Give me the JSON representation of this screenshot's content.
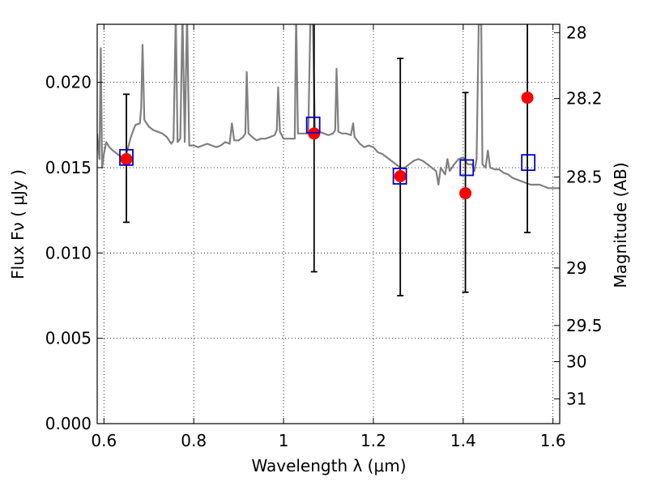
{
  "chart_data": {
    "type": "scatter",
    "xlabel": "Wavelength  λ (μm)",
    "ylabel_left": "Flux  Fν  ( μJy )",
    "ylabel_right": "Magnitude (AB)",
    "xlim": [
      0.585,
      1.615
    ],
    "ylim": [
      0.0,
      0.0234
    ],
    "x_ticks": [
      0.6,
      0.8,
      1.0,
      1.2,
      1.4,
      1.6
    ],
    "x_tick_labels": [
      "0.6",
      "0.8",
      "1",
      "1.2",
      "1.4",
      "1.6"
    ],
    "y_ticks": [
      0.0,
      0.005,
      0.01,
      0.015,
      0.02
    ],
    "y_tick_labels": [
      "0.000",
      "0.005",
      "0.010",
      "0.015",
      "0.020"
    ],
    "right_ticks": [
      {
        "label": "28",
        "flux": 0.02291
      },
      {
        "label": "28.2",
        "flux": 0.01905
      },
      {
        "label": "28.5",
        "flux": 0.01445
      },
      {
        "label": "29",
        "flux": 0.00912
      },
      {
        "label": "29.5",
        "flux": 0.00575
      },
      {
        "label": "30",
        "flux": 0.00363
      },
      {
        "label": "31",
        "flux": 0.00145
      }
    ],
    "grid": true,
    "grid_style": "dotted",
    "colors": {
      "spectrum": "#808080",
      "observed": "#ff0000",
      "model": "#0000cc",
      "errorbar": "#000000"
    },
    "series": [
      {
        "kind": "line",
        "points": [
          [
            0.585,
            0.017
          ],
          [
            0.59,
            0.0155
          ],
          [
            0.593,
            0.022
          ],
          [
            0.596,
            0.015
          ],
          [
            0.6,
            0.0158
          ],
          [
            0.605,
            0.0165
          ],
          [
            0.612,
            0.0162
          ],
          [
            0.62,
            0.016
          ],
          [
            0.63,
            0.0158
          ],
          [
            0.64,
            0.0156
          ],
          [
            0.65,
            0.0158
          ],
          [
            0.66,
            0.0168
          ],
          [
            0.67,
            0.0175
          ],
          [
            0.68,
            0.0176
          ],
          [
            0.683,
            0.0185
          ],
          [
            0.686,
            0.0222
          ],
          [
            0.69,
            0.0178
          ],
          [
            0.7,
            0.0174
          ],
          [
            0.71,
            0.0172
          ],
          [
            0.72,
            0.0171
          ],
          [
            0.73,
            0.017
          ],
          [
            0.74,
            0.0168
          ],
          [
            0.75,
            0.0164
          ],
          [
            0.755,
            0.0166
          ],
          [
            0.76,
            0.024
          ],
          [
            0.764,
            0.0165
          ],
          [
            0.77,
            0.0167
          ],
          [
            0.775,
            0.024
          ],
          [
            0.78,
            0.0165
          ],
          [
            0.785,
            0.024
          ],
          [
            0.79,
            0.0163
          ],
          [
            0.8,
            0.0163
          ],
          [
            0.81,
            0.0162
          ],
          [
            0.82,
            0.0163
          ],
          [
            0.83,
            0.0164
          ],
          [
            0.84,
            0.0163
          ],
          [
            0.85,
            0.0162
          ],
          [
            0.86,
            0.0163
          ],
          [
            0.87,
            0.0165
          ],
          [
            0.88,
            0.0164
          ],
          [
            0.885,
            0.0176
          ],
          [
            0.89,
            0.0166
          ],
          [
            0.9,
            0.0166
          ],
          [
            0.91,
            0.0168
          ],
          [
            0.915,
            0.017
          ],
          [
            0.918,
            0.0206
          ],
          [
            0.922,
            0.017
          ],
          [
            0.93,
            0.0168
          ],
          [
            0.94,
            0.0166
          ],
          [
            0.95,
            0.0167
          ],
          [
            0.96,
            0.0167
          ],
          [
            0.97,
            0.0168
          ],
          [
            0.98,
            0.0169
          ],
          [
            0.985,
            0.0172
          ],
          [
            0.988,
            0.0197
          ],
          [
            0.992,
            0.0171
          ],
          [
            1.0,
            0.0167
          ],
          [
            1.01,
            0.0167
          ],
          [
            1.02,
            0.0167
          ],
          [
            1.025,
            0.0167
          ],
          [
            1.028,
            0.024
          ],
          [
            1.032,
            0.017
          ],
          [
            1.04,
            0.017
          ],
          [
            1.05,
            0.017
          ],
          [
            1.055,
            0.017
          ],
          [
            1.06,
            0.024
          ],
          [
            1.065,
            0.024
          ],
          [
            1.07,
            0.0168
          ],
          [
            1.08,
            0.0171
          ],
          [
            1.09,
            0.017
          ],
          [
            1.1,
            0.0169
          ],
          [
            1.11,
            0.017
          ],
          [
            1.115,
            0.0172
          ],
          [
            1.118,
            0.0208
          ],
          [
            1.122,
            0.0171
          ],
          [
            1.13,
            0.017
          ],
          [
            1.14,
            0.017
          ],
          [
            1.15,
            0.0169
          ],
          [
            1.155,
            0.0176
          ],
          [
            1.158,
            0.0168
          ],
          [
            1.17,
            0.0164
          ],
          [
            1.18,
            0.0162
          ],
          [
            1.19,
            0.0163
          ],
          [
            1.2,
            0.0162
          ],
          [
            1.21,
            0.0159
          ],
          [
            1.22,
            0.0158
          ],
          [
            1.23,
            0.0156
          ],
          [
            1.24,
            0.0154
          ],
          [
            1.25,
            0.0152
          ],
          [
            1.26,
            0.015
          ],
          [
            1.27,
            0.015
          ],
          [
            1.28,
            0.0152
          ],
          [
            1.29,
            0.0154
          ],
          [
            1.3,
            0.0155
          ],
          [
            1.31,
            0.0154
          ],
          [
            1.32,
            0.0152
          ],
          [
            1.33,
            0.015
          ],
          [
            1.34,
            0.0148
          ],
          [
            1.345,
            0.014
          ],
          [
            1.35,
            0.015
          ],
          [
            1.36,
            0.0146
          ],
          [
            1.365,
            0.0155
          ],
          [
            1.37,
            0.0148
          ],
          [
            1.38,
            0.0152
          ],
          [
            1.39,
            0.0155
          ],
          [
            1.4,
            0.0156
          ],
          [
            1.41,
            0.0152
          ],
          [
            1.42,
            0.0152
          ],
          [
            1.425,
            0.0148
          ],
          [
            1.43,
            0.0155
          ],
          [
            1.435,
            0.024
          ],
          [
            1.44,
            0.024
          ],
          [
            1.443,
            0.0152
          ],
          [
            1.45,
            0.015
          ],
          [
            1.455,
            0.016
          ],
          [
            1.46,
            0.015
          ],
          [
            1.47,
            0.0149
          ],
          [
            1.48,
            0.0149
          ],
          [
            1.49,
            0.0147
          ],
          [
            1.5,
            0.0146
          ],
          [
            1.51,
            0.0144
          ],
          [
            1.52,
            0.0143
          ],
          [
            1.53,
            0.0142
          ],
          [
            1.54,
            0.0141
          ],
          [
            1.55,
            0.014
          ],
          [
            1.56,
            0.014
          ],
          [
            1.57,
            0.014
          ],
          [
            1.58,
            0.0139
          ],
          [
            1.59,
            0.0138
          ],
          [
            1.6,
            0.0138
          ],
          [
            1.615,
            0.0138
          ]
        ]
      },
      {
        "kind": "observed",
        "points": [
          {
            "x": 0.65,
            "y": 0.0155,
            "yerr_low": 0.0118,
            "yerr_high": 0.0193
          },
          {
            "x": 1.068,
            "y": 0.017,
            "yerr_low": 0.0089,
            "yerr_high": 0.024
          },
          {
            "x": 1.26,
            "y": 0.0145,
            "yerr_low": 0.0075,
            "yerr_high": 0.0214
          },
          {
            "x": 1.405,
            "y": 0.0135,
            "yerr_low": 0.0077,
            "yerr_high": 0.0194
          },
          {
            "x": 1.543,
            "y": 0.0191,
            "yerr_low": 0.0112,
            "yerr_high": 0.024
          }
        ]
      },
      {
        "kind": "model",
        "points": [
          {
            "x": 0.65,
            "y": 0.0156
          },
          {
            "x": 1.066,
            "y": 0.0175
          },
          {
            "x": 1.259,
            "y": 0.0145
          },
          {
            "x": 1.408,
            "y": 0.015
          },
          {
            "x": 1.545,
            "y": 0.0153
          }
        ]
      }
    ]
  }
}
